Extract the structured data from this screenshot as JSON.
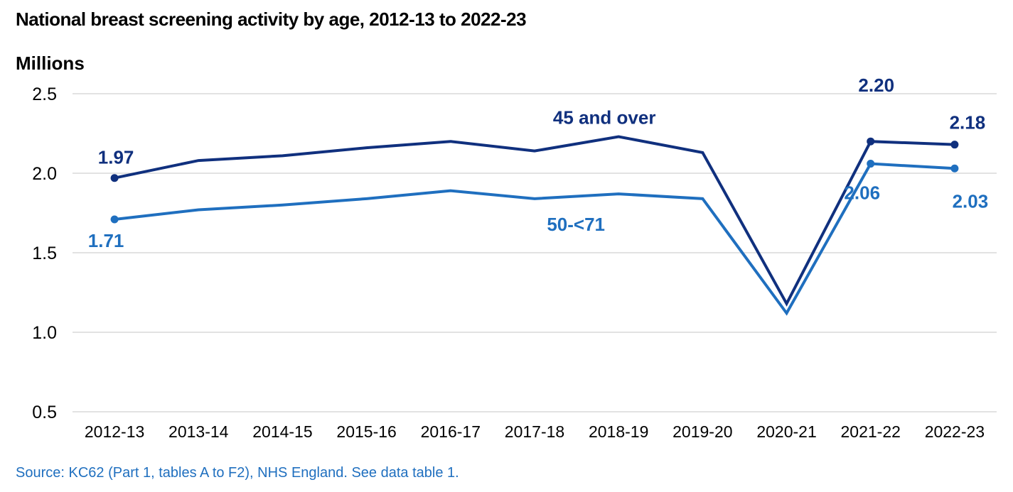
{
  "chart_data": {
    "type": "line",
    "title": "National breast screening activity by age, 2012-13 to 2022-23",
    "ylabel": "Millions",
    "xlabel": "",
    "ylim": [
      0.5,
      2.5
    ],
    "yticks": [
      "0.5",
      "1.0",
      "1.5",
      "2.0",
      "2.5"
    ],
    "grid": true,
    "categories": [
      "2012-13",
      "2013-14",
      "2014-15",
      "2015-16",
      "2016-17",
      "2017-18",
      "2018-19",
      "2019-20",
      "2020-21",
      "2021-22",
      "2022-23"
    ],
    "series": [
      {
        "name": "45 and over",
        "color": "#10307e",
        "values": [
          1.97,
          2.08,
          2.11,
          2.16,
          2.2,
          2.14,
          2.23,
          2.13,
          1.18,
          2.2,
          2.18
        ],
        "markers": [
          0,
          9,
          10
        ],
        "labels": [
          "1.97",
          "2.20",
          "2.18"
        ]
      },
      {
        "name": "50-<71",
        "color": "#1f6fbf",
        "values": [
          1.71,
          1.77,
          1.8,
          1.84,
          1.89,
          1.84,
          1.87,
          1.84,
          1.12,
          2.06,
          2.03
        ],
        "markers": [
          0,
          9,
          10
        ],
        "labels": [
          "1.71",
          "2.06",
          "2.03"
        ]
      }
    ]
  },
  "source": "Source: KC62 (Part 1, tables A to F2), NHS England. See data table 1."
}
